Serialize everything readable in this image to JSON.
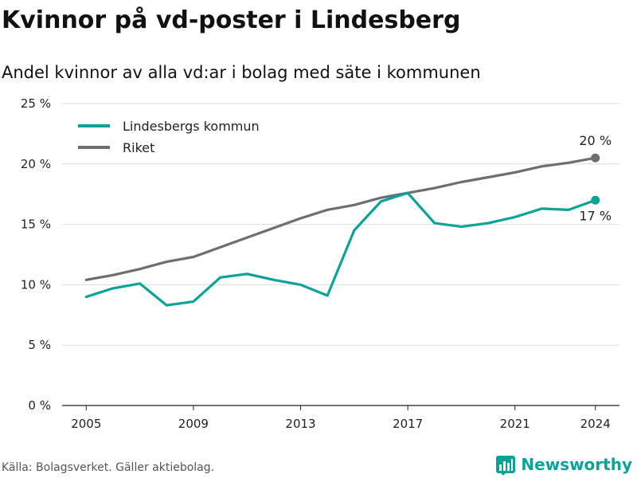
{
  "header": {
    "title": "Kvinnor på vd-poster i Lindesberg",
    "subtitle": "Andel kvinnor av alla vd:ar i bolag med säte i kommunen"
  },
  "footer": {
    "source": "Källa: Bolagsverket. Gäller aktiebolag.",
    "brand": "Newsworthy",
    "brand_icon": "bar-chart-logo-icon"
  },
  "colors": {
    "lindesberg": "#0aa39a",
    "riket": "#6e6d72",
    "grid": "#dcdcdc",
    "axis": "#222222",
    "brand": "#0aa39a"
  },
  "chart_data": {
    "type": "line",
    "title": "Kvinnor på vd-poster i Lindesberg",
    "subtitle": "Andel kvinnor av alla vd:ar i bolag med säte i kommunen",
    "xlabel": "",
    "ylabel": "",
    "xlim": [
      2005,
      2024
    ],
    "ylim": [
      0,
      25
    ],
    "x_ticks": [
      2005,
      2009,
      2013,
      2017,
      2021,
      2024
    ],
    "x_tick_labels": [
      "2005",
      "2009",
      "2013",
      "2017",
      "2021",
      "2024"
    ],
    "y_ticks": [
      0,
      5,
      10,
      15,
      20,
      25
    ],
    "y_tick_labels": [
      "0 %",
      "5 %",
      "10 %",
      "15 %",
      "20 %",
      "25 %"
    ],
    "grid": "horizontal",
    "legend_position": "top-left",
    "x": [
      2005,
      2006,
      2007,
      2008,
      2009,
      2010,
      2011,
      2012,
      2013,
      2014,
      2015,
      2016,
      2017,
      2018,
      2019,
      2020,
      2021,
      2022,
      2023,
      2024
    ],
    "series": [
      {
        "name": "Lindesbergs kommun",
        "color": "#0aa39a",
        "values": [
          9.0,
          9.7,
          10.1,
          8.3,
          8.6,
          10.6,
          10.9,
          10.4,
          10.0,
          9.1,
          14.5,
          16.9,
          17.6,
          15.1,
          14.8,
          15.1,
          15.6,
          16.3,
          16.2,
          17.0
        ],
        "end_label": "17 %",
        "end_label_side": "below"
      },
      {
        "name": "Riket",
        "color": "#6e6d72",
        "values": [
          10.4,
          10.8,
          11.3,
          11.9,
          12.3,
          13.1,
          13.9,
          14.7,
          15.5,
          16.2,
          16.6,
          17.2,
          17.6,
          18.0,
          18.5,
          18.9,
          19.3,
          19.8,
          20.1,
          20.5
        ],
        "end_label": "20 %",
        "end_label_side": "above"
      }
    ]
  }
}
